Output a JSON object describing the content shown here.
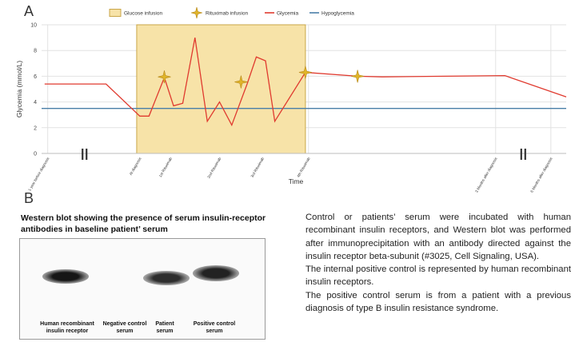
{
  "panel_a": {
    "letter": "A",
    "chart_data": {
      "type": "line",
      "xlabel": "Time",
      "ylabel": "Glycemia (mmol/L)",
      "ylim": [
        0,
        10
      ],
      "yticks": [
        "0",
        "2",
        "4",
        "6",
        "8",
        "10"
      ],
      "grid": true,
      "legend_position": "top",
      "legend": [
        "Glucose infusion",
        "Rituximab infusion",
        "Glycemia",
        "Hypoglycemia"
      ],
      "x_tick_labels": [
        "1 year before diagnosis",
        "At diagnosis",
        "1st Rituximab",
        "2nd Rituximab",
        "3rd Rituximab",
        "4th Rituximab",
        "3 Months after diagnosis",
        "6 Months after diagnosis"
      ],
      "axis_breaks": 2,
      "glycemia_series": {
        "name": "Glycemia",
        "color": "#e03a2f",
        "points": [
          [
            0,
            5.4
          ],
          [
            1.0,
            5.4
          ],
          [
            1.55,
            2.9
          ],
          [
            1.7,
            2.9
          ],
          [
            1.95,
            5.9
          ],
          [
            2.1,
            3.7
          ],
          [
            2.25,
            3.9
          ],
          [
            2.45,
            9.0
          ],
          [
            2.65,
            2.5
          ],
          [
            2.85,
            4.0
          ],
          [
            3.05,
            2.2
          ],
          [
            3.3,
            5.4
          ],
          [
            3.45,
            7.5
          ],
          [
            3.6,
            7.2
          ],
          [
            3.75,
            2.5
          ],
          [
            4.25,
            6.3
          ],
          [
            5.1,
            6.0
          ],
          [
            5.5,
            5.95
          ],
          [
            7.5,
            6.05
          ],
          [
            8.5,
            4.4
          ]
        ]
      },
      "glucose_infusion": {
        "x_start": 1.5,
        "x_end": 4.25,
        "color": "#f7e3a8"
      },
      "rituximab_infusions": [
        {
          "x": 1.95,
          "y": 5.95
        },
        {
          "x": 3.2,
          "y": 5.55
        },
        {
          "x": 4.25,
          "y": 6.3
        },
        {
          "x": 5.1,
          "y": 6.0
        }
      ],
      "hypoglycemia_threshold": {
        "value": 3.5,
        "color": "#4a7fa8"
      },
      "x_tick_positions": [
        0.05,
        1.55,
        2.05,
        2.85,
        3.55,
        4.3,
        7.35,
        8.25
      ],
      "x_break_positions": [
        0.65,
        7.8
      ],
      "xlim": [
        -0.05,
        8.5
      ]
    }
  },
  "panel_b": {
    "letter": "B",
    "title": "Western blot showing the presence of serum insulin-receptor antibodies in baseline patient’ serum",
    "lanes": [
      {
        "label": "Human recombinant insulin receptor",
        "intensity": 0.95
      },
      {
        "label": "Negative control serum",
        "intensity": 0.0
      },
      {
        "label": "Patient serum",
        "intensity": 0.85
      },
      {
        "label": "Positive control serum",
        "intensity": 0.9
      }
    ],
    "description": [
      "Control or patients’ serum were incubated with human recombinant insulin receptors, and Western blot was performed after immunoprecipitation with an antibody directed against the insulin receptor beta-subunit (#3025, Cell Signaling, USA).",
      "The internal positive control is represented by human recombinant insulin receptors.",
      "The positive control serum is from a patient with a previous diagnosis of type B insulin resistance syndrome."
    ]
  }
}
